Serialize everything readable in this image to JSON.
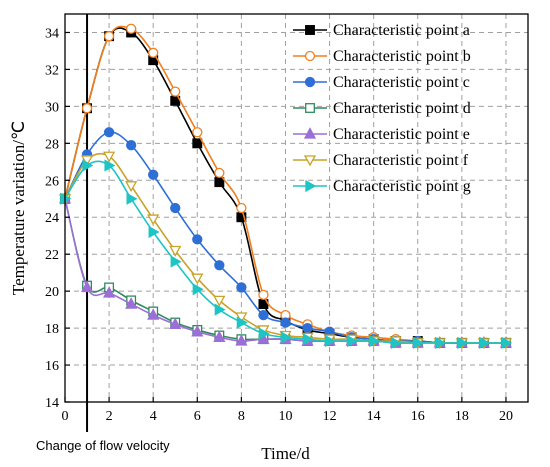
{
  "chart_data": {
    "type": "line",
    "xlabel": "Time/d",
    "ylabel": "Temperature variation/℃",
    "xlim": [
      0,
      21
    ],
    "ylim": [
      14,
      35
    ],
    "xticks": [
      0,
      2,
      4,
      6,
      8,
      10,
      12,
      14,
      16,
      18,
      20
    ],
    "yticks": [
      14,
      16,
      18,
      20,
      22,
      24,
      26,
      28,
      30,
      32,
      34
    ],
    "grid": true,
    "legend_position": "top-right",
    "annotation": {
      "text": "Change of flow velocity",
      "x": 1
    },
    "series": [
      {
        "name": "Characteristic point a",
        "color": "#000000",
        "marker": "square-filled",
        "x": [
          0,
          1,
          2,
          3,
          4,
          5,
          6,
          7,
          8,
          9,
          10,
          11,
          12,
          13,
          14,
          15,
          16,
          17,
          18,
          19,
          20
        ],
        "y": [
          25.0,
          29.9,
          33.8,
          34.0,
          32.5,
          30.3,
          28.0,
          25.9,
          24.0,
          19.3,
          18.4,
          17.9,
          17.7,
          17.5,
          17.4,
          17.3,
          17.3,
          17.2,
          17.2,
          17.2,
          17.2
        ]
      },
      {
        "name": "Characteristic point b",
        "color": "#f07f1f",
        "marker": "circle-open",
        "x": [
          0,
          1,
          2,
          3,
          4,
          5,
          6,
          7,
          8,
          9,
          10,
          11,
          12,
          13,
          14,
          15,
          16,
          17,
          18,
          19,
          20
        ],
        "y": [
          25.0,
          29.9,
          33.8,
          34.2,
          32.9,
          30.8,
          28.6,
          26.4,
          24.5,
          19.8,
          18.7,
          18.2,
          17.8,
          17.6,
          17.5,
          17.4,
          17.3,
          17.2,
          17.2,
          17.2,
          17.2
        ]
      },
      {
        "name": "Characteristic point c",
        "color": "#2e6fd6",
        "marker": "circle-filled",
        "x": [
          0,
          1,
          2,
          3,
          4,
          5,
          6,
          7,
          8,
          9,
          10,
          11,
          12,
          13,
          14,
          15,
          16,
          17,
          18,
          19,
          20
        ],
        "y": [
          25.0,
          27.4,
          28.6,
          27.9,
          26.3,
          24.5,
          22.8,
          21.4,
          20.2,
          18.7,
          18.3,
          18.0,
          17.8,
          17.5,
          17.4,
          17.3,
          17.3,
          17.2,
          17.2,
          17.2,
          17.2
        ]
      },
      {
        "name": "Characteristic point d",
        "color": "#2f8a5f",
        "marker": "square-open",
        "x": [
          0,
          1,
          2,
          3,
          4,
          5,
          6,
          7,
          8,
          9,
          10,
          11,
          12,
          13,
          14,
          15,
          16,
          17,
          18,
          19,
          20
        ],
        "y": [
          25.0,
          20.3,
          20.2,
          19.5,
          18.9,
          18.3,
          17.9,
          17.6,
          17.4,
          17.4,
          17.4,
          17.3,
          17.3,
          17.3,
          17.3,
          17.2,
          17.2,
          17.2,
          17.2,
          17.2,
          17.2
        ]
      },
      {
        "name": "Characteristic point e",
        "color": "#9b6fd6",
        "marker": "triangle-filled",
        "x": [
          0,
          1,
          2,
          3,
          4,
          5,
          6,
          7,
          8,
          9,
          10,
          11,
          12,
          13,
          14,
          15,
          16,
          17,
          18,
          19,
          20
        ],
        "y": [
          25.0,
          20.2,
          19.9,
          19.3,
          18.7,
          18.2,
          17.8,
          17.5,
          17.3,
          17.4,
          17.4,
          17.3,
          17.3,
          17.3,
          17.3,
          17.2,
          17.2,
          17.2,
          17.2,
          17.2,
          17.2
        ]
      },
      {
        "name": "Characteristic point f",
        "color": "#c9a227",
        "marker": "triangle-down-open",
        "x": [
          0,
          1,
          2,
          3,
          4,
          5,
          6,
          7,
          8,
          9,
          10,
          11,
          12,
          13,
          14,
          15,
          16,
          17,
          18,
          19,
          20
        ],
        "y": [
          25.0,
          27.1,
          27.3,
          25.7,
          23.9,
          22.2,
          20.7,
          19.5,
          18.6,
          17.9,
          17.6,
          17.5,
          17.4,
          17.4,
          17.3,
          17.3,
          17.2,
          17.2,
          17.2,
          17.2,
          17.2
        ]
      },
      {
        "name": "Characteristic point g",
        "color": "#1fc4c4",
        "marker": "triangle-right-filled",
        "x": [
          0,
          1,
          2,
          3,
          4,
          5,
          6,
          7,
          8,
          9,
          10,
          11,
          12,
          13,
          14,
          15,
          16,
          17,
          18,
          19,
          20
        ],
        "y": [
          25.0,
          26.8,
          26.8,
          25.0,
          23.2,
          21.6,
          20.1,
          19.0,
          18.3,
          17.7,
          17.5,
          17.4,
          17.3,
          17.3,
          17.3,
          17.2,
          17.2,
          17.2,
          17.2,
          17.2,
          17.2
        ]
      }
    ]
  }
}
